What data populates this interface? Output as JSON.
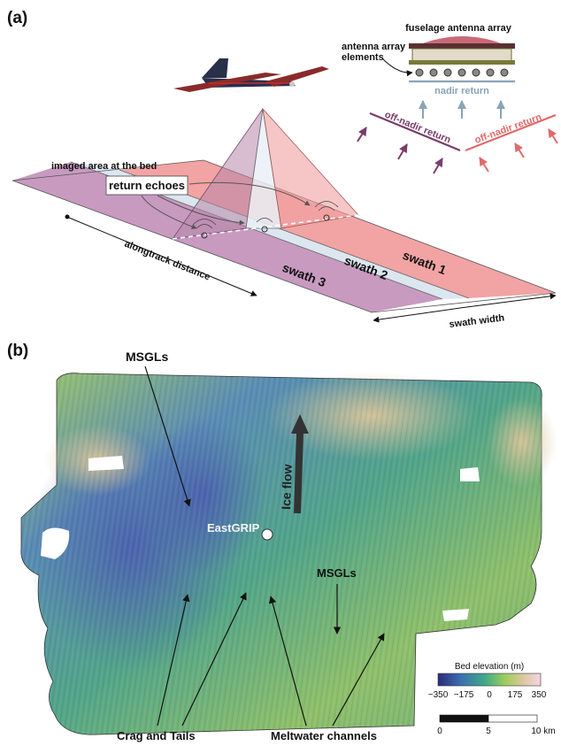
{
  "panel_a": {
    "label": "(a)",
    "fuselage_label": "fuselage antenna array",
    "elements_label_line1": "antenna array",
    "elements_label_line2": "elements",
    "nadir_return": "nadir return",
    "off_nadir_left": "off-nadir return",
    "off_nadir_right": "off-nadir return",
    "imaged_area": "imaged area at the bed",
    "return_echoes": "return echoes",
    "alongtrack": "alongtrack distance",
    "swath1": "swath 1",
    "swath2": "swath 2",
    "swath3": "swath 3",
    "swath_width": "swath width",
    "colors": {
      "swath1": "#f2a3a3",
      "swath2": "#dbe6ef",
      "swath3": "#c89ac0",
      "nadir": "#8aa3b8",
      "offnadir_left": "#7a3d6b",
      "offnadir_right": "#e06a6a"
    }
  },
  "panel_b": {
    "label": "(b)",
    "msgl_top": "MSGLs",
    "msgl_right": "MSGLs",
    "ice_flow": "Ice flow",
    "eastgrip": "EastGRIP",
    "crag": "Crag and Tails",
    "meltwater": "Meltwater channels",
    "colorbar": {
      "title": "Bed elevation (m)",
      "ticks": [
        "−350",
        "−175",
        "0",
        "175",
        "350"
      ],
      "colors": [
        "#2c2a7d",
        "#3b6fb0",
        "#3fa88a",
        "#9ccc5c",
        "#d8c89a",
        "#f3d6e6"
      ]
    },
    "scalebar": {
      "ticks": [
        "0",
        "5",
        "10 km"
      ]
    }
  }
}
